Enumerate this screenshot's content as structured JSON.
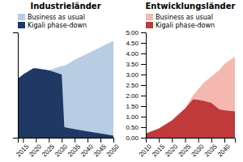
{
  "chart_data": [
    {
      "type": "area",
      "title": "Industrieländer",
      "x": [
        2013,
        2015,
        2019,
        2020,
        2025,
        2030,
        2031,
        2035,
        2040,
        2045,
        2050
      ],
      "series": [
        {
          "name": "Business as usual",
          "color": "#b8cce4",
          "values": [
            0.28,
            0.28,
            0.3,
            0.3,
            0.32,
            0.34,
            0.34,
            0.37,
            0.4,
            0.43,
            0.46
          ]
        },
        {
          "name": "Kigali phase-down",
          "color": "#1f3864",
          "values": [
            0.28,
            0.3,
            0.33,
            0.33,
            0.32,
            0.3,
            0.05,
            0.04,
            0.03,
            0.02,
            0.01
          ]
        }
      ],
      "xlim": [
        2013,
        2050
      ],
      "xticks": [
        2015,
        2020,
        2025,
        2030,
        2035,
        2040,
        2045,
        2050
      ],
      "ylim": [
        0,
        0.5
      ],
      "yticks": [],
      "tick_labels": "x",
      "grid": false,
      "legend": "top-left"
    },
    {
      "type": "area",
      "title": "Entwicklungsländer",
      "x": [
        2010,
        2015,
        2020,
        2025,
        2028,
        2030,
        2032,
        2035,
        2038,
        2040,
        2044
      ],
      "series": [
        {
          "name": "Business as usual",
          "color": "#f4b8b0",
          "values": [
            0.2,
            0.45,
            0.85,
            1.4,
            2.0,
            2.3,
            2.6,
            2.9,
            3.2,
            3.5,
            3.85
          ]
        },
        {
          "name": "Kigali phase-down",
          "color": "#c0393b",
          "values": [
            0.2,
            0.43,
            0.82,
            1.38,
            1.82,
            1.8,
            1.75,
            1.65,
            1.35,
            1.3,
            1.25
          ]
        }
      ],
      "xlim": [
        2010,
        2044
      ],
      "xticks": [
        2010,
        2015,
        2020,
        2025,
        2030,
        2035,
        2040
      ],
      "ylim": [
        0,
        5.0
      ],
      "yticks": [
        {
          "value": 0,
          "label": "0.00"
        },
        {
          "value": 0.5,
          "label": "0.50"
        },
        {
          "value": 1,
          "label": "1.00"
        },
        {
          "value": 1.5,
          "label": "1.50"
        },
        {
          "value": 2,
          "label": "2.00"
        },
        {
          "value": 2.5,
          "label": "2.50"
        },
        {
          "value": 3,
          "label": "3.00"
        },
        {
          "value": 3.5,
          "label": "3.50"
        },
        {
          "value": 4,
          "label": "4.00"
        },
        {
          "value": 4.5,
          "label": "4.50"
        },
        {
          "value": 5,
          "label": "5.00"
        }
      ],
      "grid": false,
      "legend": "top-left"
    }
  ]
}
